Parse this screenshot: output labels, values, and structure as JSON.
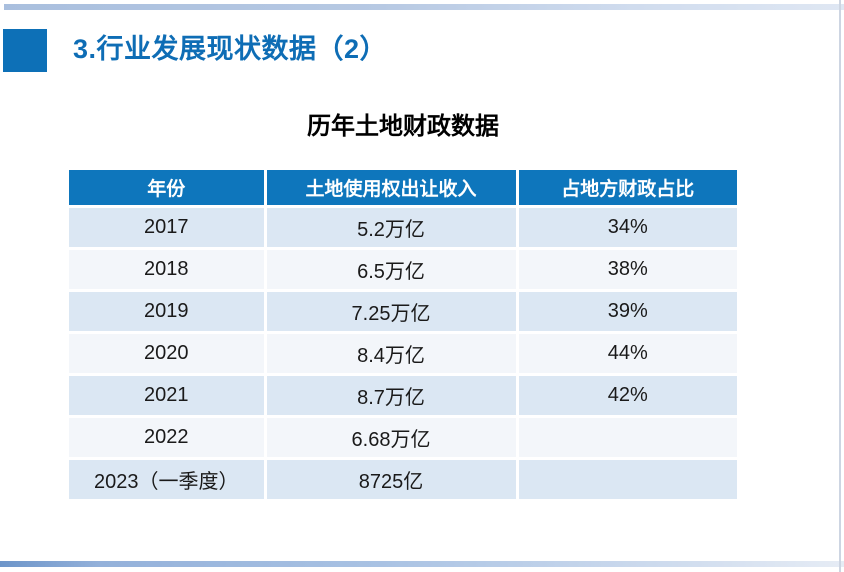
{
  "slide": {
    "title": "3.行业发展现状数据（2）",
    "table_title": "历年土地财政数据"
  },
  "table": {
    "headers": [
      "年份",
      "土地使用权出让收入",
      "占地方财政占比"
    ],
    "rows": [
      [
        "2017",
        "5.2万亿",
        "34%"
      ],
      [
        "2018",
        "6.5万亿",
        "38%"
      ],
      [
        "2019",
        "7.25万亿",
        "39%"
      ],
      [
        "2020",
        "8.4万亿",
        "44%"
      ],
      [
        "2021",
        "8.7万亿",
        "42%"
      ],
      [
        "2022",
        "6.68万亿",
        ""
      ],
      [
        "2023（一季度）",
        "8725亿",
        ""
      ]
    ]
  },
  "colors": {
    "accent_square_blue": "#0d70b7",
    "title_blue": "#0e6db5",
    "table_header_blue": "#0e76bc",
    "row_band_light_blue": "#dbe7f3",
    "row_band_near_white": "#f3f6fa",
    "top_strip_blue": "#a9bfde",
    "bottom_strip_blue": "#6d95c9",
    "right_edge_gray": "#cdd5e2"
  }
}
